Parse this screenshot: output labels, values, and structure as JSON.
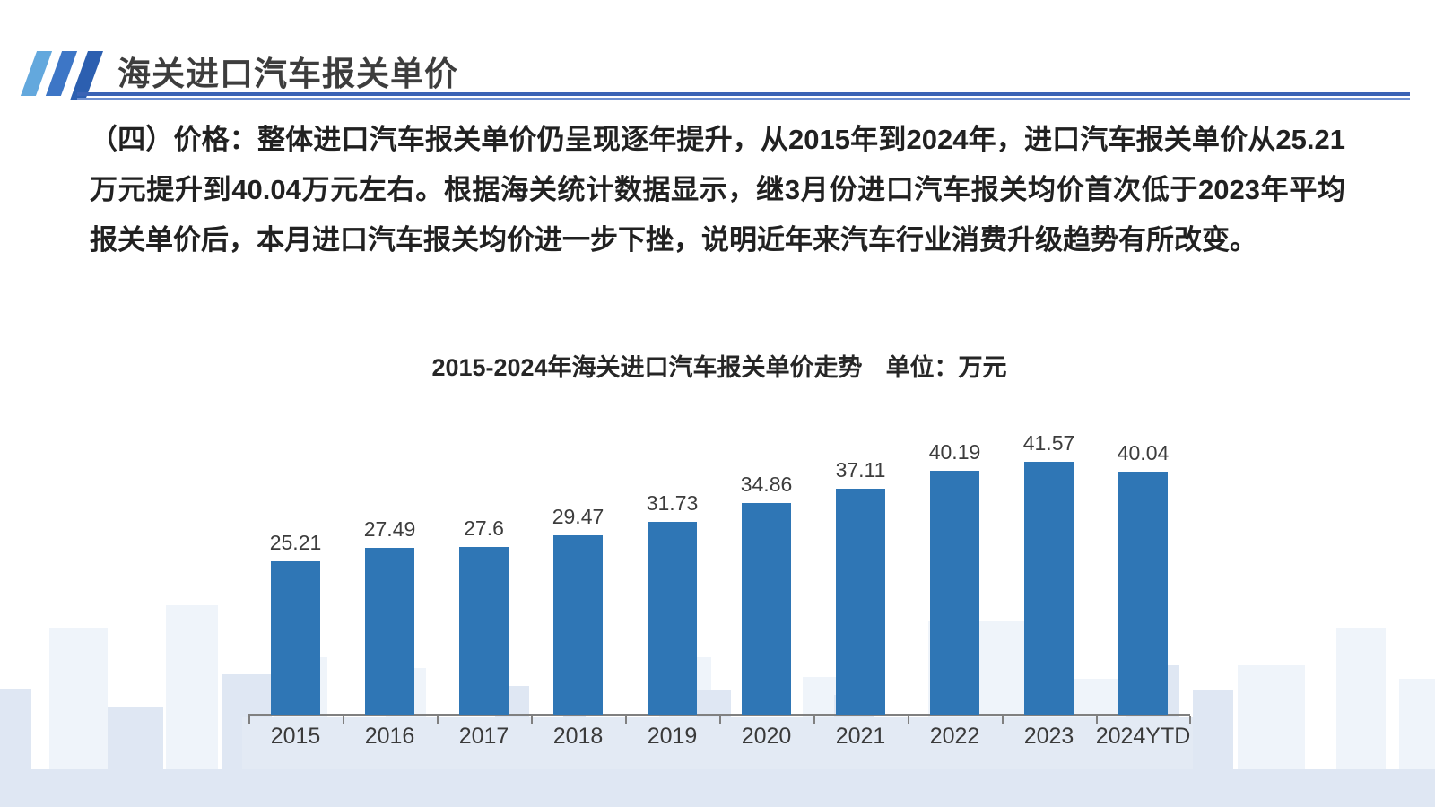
{
  "header": {
    "title": "海关进口汽车报关单价"
  },
  "paragraph": {
    "text": "（四）价格：整体进口汽车报关单价仍呈现逐年提升，从2015年到2024年，进口汽车报关单价从25.21万元提升到40.04万元左右。根据海关统计数据显示，继3月份进口汽车报关均价首次低于2023年平均报关单价后，本月进口汽车报关均价进一步下挫，说明近年来汽车行业消费升级趋势有所改变。"
  },
  "chart_data": {
    "type": "bar",
    "title": "2015-2024年海关进口汽车报关单价走势",
    "unit_label": "单位：万元",
    "categories": [
      "2015",
      "2016",
      "2017",
      "2018",
      "2019",
      "2020",
      "2021",
      "2022",
      "2023",
      "2024YTD"
    ],
    "values": [
      25.21,
      27.49,
      27.6,
      29.47,
      31.73,
      34.86,
      37.11,
      40.19,
      41.57,
      40.04
    ],
    "value_labels": [
      "25.21",
      "27.49",
      "27.6",
      "29.47",
      "31.73",
      "34.86",
      "37.11",
      "40.19",
      "41.57",
      "40.04"
    ],
    "ylim": [
      0,
      45
    ],
    "grid": false,
    "legend": null,
    "bar_color": "#2F76B5",
    "axis_color": "#808080"
  },
  "colors": {
    "accent_rule_dark": "#3a63b5",
    "accent_rule_light": "#6e8fd0",
    "logo_blues": [
      "#63a8dd",
      "#3d76c6",
      "#2c5fb0"
    ],
    "skyline_light": "#eff4fa",
    "skyline_dark": "#dfe7f3"
  }
}
